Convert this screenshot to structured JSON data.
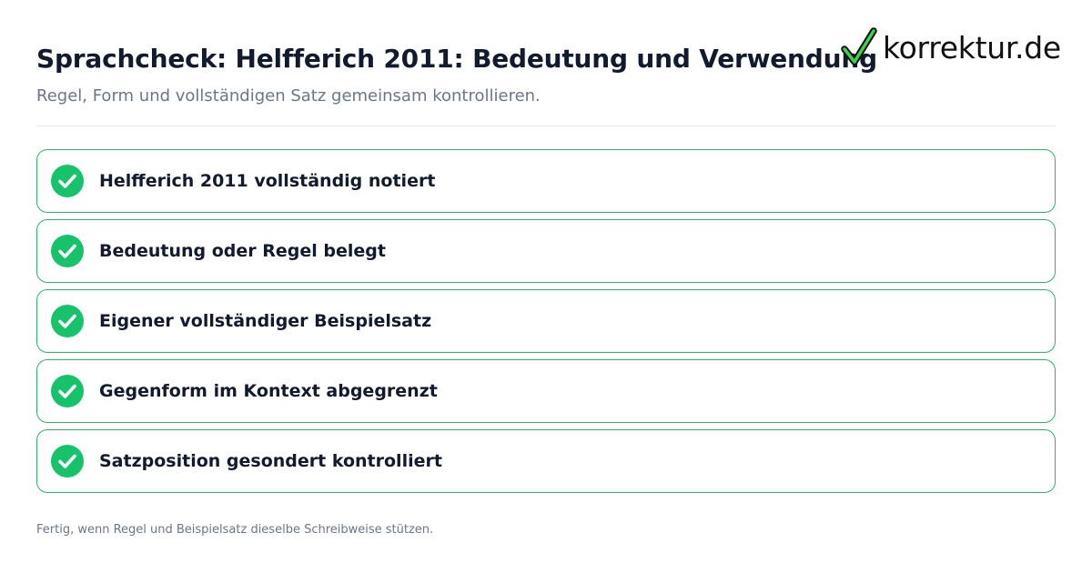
{
  "header": {
    "title": "Sprachcheck: Helfferich 2011: Bedeutung und Verwendung",
    "subtitle": "Regel, Form und vollständigen Satz gemeinsam kontrollieren."
  },
  "logo": {
    "text": "korrektur.de",
    "icon": "checkmark-logo-icon",
    "accent_color": "#3cd24a"
  },
  "checklist": {
    "items": [
      {
        "label": "Helfferich 2011 vollständig notiert",
        "checked": true
      },
      {
        "label": "Bedeutung oder Regel belegt",
        "checked": true
      },
      {
        "label": "Eigener vollständiger Beispielsatz",
        "checked": true
      },
      {
        "label": "Gegenform im Kontext abgegrenzt",
        "checked": true
      },
      {
        "label": "Satzposition gesondert kontrolliert",
        "checked": true
      }
    ],
    "icon": "check-circle-icon",
    "check_color": "#16c26a",
    "border_color": "#2fb36a"
  },
  "footer": {
    "note": "Fertig, wenn Regel und Beispielsatz dieselbe Schreibweise stützen."
  }
}
